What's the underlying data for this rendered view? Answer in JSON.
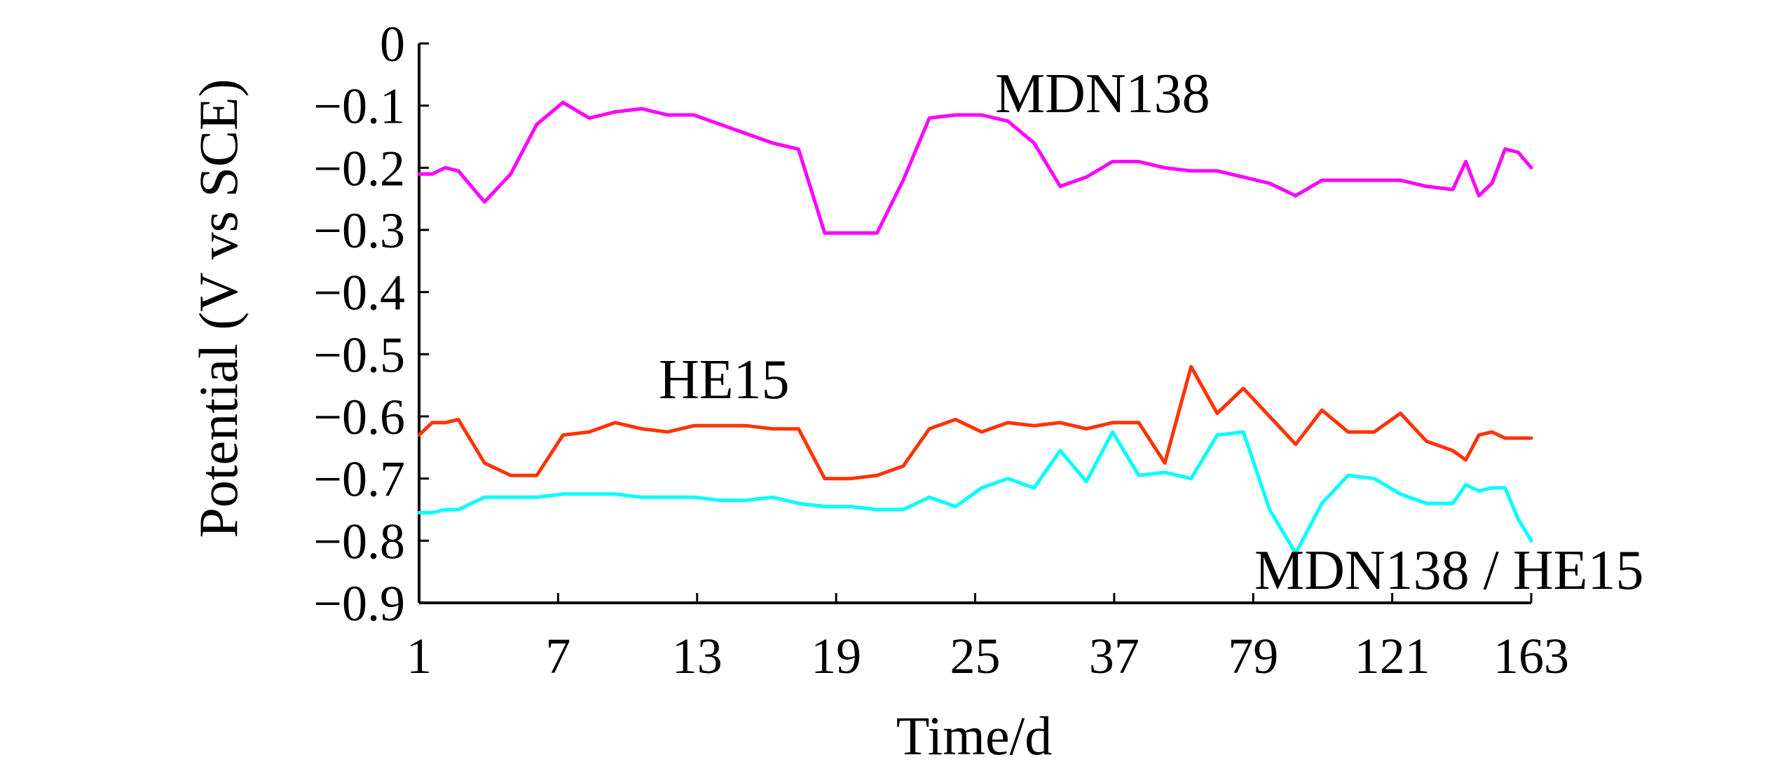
{
  "chart_data": {
    "type": "line",
    "xlabel": "Time/d",
    "ylabel": "Potential (V vs SCE)",
    "ylim": [
      -0.9,
      0
    ],
    "yticks": [
      "0",
      "−0.1",
      "−0.2",
      "−0.3",
      "−0.4",
      "−0.5",
      "−0.6",
      "−0.7",
      "−0.8",
      "−0.9"
    ],
    "yticks_values": [
      0,
      -0.1,
      -0.2,
      -0.3,
      -0.4,
      -0.5,
      -0.6,
      -0.7,
      -0.8,
      -0.9
    ],
    "xticks": [
      "1",
      "7",
      "13",
      "19",
      "25",
      "37",
      "79",
      "121",
      "163"
    ],
    "grid": false,
    "series": [
      {
        "name": "MDN138",
        "color": "#ff00ff",
        "values": [
          [
            1,
            -0.21
          ],
          [
            1.5,
            -0.21
          ],
          [
            2,
            -0.2
          ],
          [
            2.5,
            -0.205
          ],
          [
            3.5,
            -0.255
          ],
          [
            4.5,
            -0.21
          ],
          [
            5.5,
            -0.13
          ],
          [
            6.5,
            -0.095
          ],
          [
            7.5,
            -0.12
          ],
          [
            8.5,
            -0.11
          ],
          [
            9.5,
            -0.105
          ],
          [
            10.5,
            -0.115
          ],
          [
            11.5,
            -0.115
          ],
          [
            12.5,
            -0.13
          ],
          [
            13.5,
            -0.145
          ],
          [
            14.5,
            -0.16
          ],
          [
            15.5,
            -0.17
          ],
          [
            16.5,
            -0.305
          ],
          [
            17.5,
            -0.305
          ],
          [
            18.5,
            -0.305
          ],
          [
            19.5,
            -0.22
          ],
          [
            20.5,
            -0.12
          ],
          [
            21.5,
            -0.115
          ],
          [
            22.5,
            -0.115
          ],
          [
            23.5,
            -0.125
          ],
          [
            24.5,
            -0.16
          ],
          [
            25.5,
            -0.23
          ],
          [
            26.5,
            -0.215
          ],
          [
            27.5,
            -0.19
          ],
          [
            28.5,
            -0.19
          ],
          [
            29.5,
            -0.2
          ],
          [
            30.5,
            -0.205
          ],
          [
            31.5,
            -0.205
          ],
          [
            32.5,
            -0.215
          ],
          [
            33.5,
            -0.225
          ],
          [
            34.5,
            -0.245
          ],
          [
            35.5,
            -0.22
          ],
          [
            36.5,
            -0.22
          ],
          [
            37.5,
            -0.22
          ],
          [
            38.5,
            -0.22
          ],
          [
            39.5,
            -0.23
          ],
          [
            40.5,
            -0.235
          ],
          [
            41,
            -0.19
          ],
          [
            41.5,
            -0.245
          ],
          [
            42,
            -0.225
          ],
          [
            42.5,
            -0.17
          ],
          [
            43,
            -0.175
          ],
          [
            43.5,
            -0.2
          ]
        ]
      },
      {
        "name": "HE15",
        "color": "#ff3300",
        "values": [
          [
            1,
            -0.63
          ],
          [
            1.5,
            -0.61
          ],
          [
            2,
            -0.61
          ],
          [
            2.5,
            -0.605
          ],
          [
            3.5,
            -0.675
          ],
          [
            4.5,
            -0.695
          ],
          [
            5.5,
            -0.695
          ],
          [
            6.5,
            -0.63
          ],
          [
            7.5,
            -0.625
          ],
          [
            8.5,
            -0.61
          ],
          [
            9.5,
            -0.62
          ],
          [
            10.5,
            -0.625
          ],
          [
            11.5,
            -0.615
          ],
          [
            12.5,
            -0.615
          ],
          [
            13.5,
            -0.615
          ],
          [
            14.5,
            -0.62
          ],
          [
            15.5,
            -0.62
          ],
          [
            16.5,
            -0.7
          ],
          [
            17.5,
            -0.7
          ],
          [
            18.5,
            -0.695
          ],
          [
            19.5,
            -0.68
          ],
          [
            20.5,
            -0.62
          ],
          [
            21.5,
            -0.605
          ],
          [
            22.5,
            -0.625
          ],
          [
            23.5,
            -0.61
          ],
          [
            24.5,
            -0.615
          ],
          [
            25.5,
            -0.61
          ],
          [
            26.5,
            -0.62
          ],
          [
            27.5,
            -0.61
          ],
          [
            28.5,
            -0.61
          ],
          [
            29.5,
            -0.675
          ],
          [
            30.5,
            -0.52
          ],
          [
            31.5,
            -0.595
          ],
          [
            32.5,
            -0.555
          ],
          [
            33.5,
            -0.6
          ],
          [
            34.5,
            -0.645
          ],
          [
            35.5,
            -0.59
          ],
          [
            36.5,
            -0.625
          ],
          [
            37.5,
            -0.625
          ],
          [
            38.5,
            -0.595
          ],
          [
            39.5,
            -0.64
          ],
          [
            40.5,
            -0.655
          ],
          [
            41,
            -0.67
          ],
          [
            41.5,
            -0.63
          ],
          [
            42,
            -0.625
          ],
          [
            42.5,
            -0.635
          ],
          [
            43,
            -0.635
          ],
          [
            43.5,
            -0.635
          ]
        ]
      },
      {
        "name": "MDN138 / HE15",
        "color": "#00ffff",
        "values": [
          [
            1,
            -0.755
          ],
          [
            1.5,
            -0.755
          ],
          [
            2,
            -0.75
          ],
          [
            2.5,
            -0.75
          ],
          [
            3.5,
            -0.73
          ],
          [
            4.5,
            -0.73
          ],
          [
            5.5,
            -0.73
          ],
          [
            6.5,
            -0.725
          ],
          [
            7.5,
            -0.725
          ],
          [
            8.5,
            -0.725
          ],
          [
            9.5,
            -0.73
          ],
          [
            10.5,
            -0.73
          ],
          [
            11.5,
            -0.73
          ],
          [
            12.5,
            -0.735
          ],
          [
            13.5,
            -0.735
          ],
          [
            14.5,
            -0.73
          ],
          [
            15.5,
            -0.74
          ],
          [
            16.5,
            -0.745
          ],
          [
            17.5,
            -0.745
          ],
          [
            18.5,
            -0.75
          ],
          [
            19.5,
            -0.75
          ],
          [
            20.5,
            -0.73
          ],
          [
            21.5,
            -0.745
          ],
          [
            22.5,
            -0.715
          ],
          [
            23.5,
            -0.7
          ],
          [
            24.5,
            -0.715
          ],
          [
            25.5,
            -0.655
          ],
          [
            26.5,
            -0.705
          ],
          [
            27.5,
            -0.625
          ],
          [
            28.5,
            -0.695
          ],
          [
            29.5,
            -0.69
          ],
          [
            30.5,
            -0.7
          ],
          [
            31.5,
            -0.63
          ],
          [
            32.5,
            -0.625
          ],
          [
            33.5,
            -0.75
          ],
          [
            34.5,
            -0.82
          ],
          [
            35.5,
            -0.74
          ],
          [
            36.5,
            -0.695
          ],
          [
            37.5,
            -0.7
          ],
          [
            38.5,
            -0.725
          ],
          [
            39.5,
            -0.74
          ],
          [
            40.5,
            -0.74
          ],
          [
            41,
            -0.71
          ],
          [
            41.5,
            -0.72
          ],
          [
            42,
            -0.715
          ],
          [
            42.5,
            -0.715
          ],
          [
            43,
            -0.765
          ],
          [
            43.5,
            -0.8
          ]
        ]
      }
    ],
    "annotations": [
      {
        "text": "MDN138",
        "series": "MDN138"
      },
      {
        "text": "HE15",
        "series": "HE15"
      },
      {
        "text": "MDN138 / HE15",
        "series": "MDN138 / HE15"
      }
    ]
  }
}
